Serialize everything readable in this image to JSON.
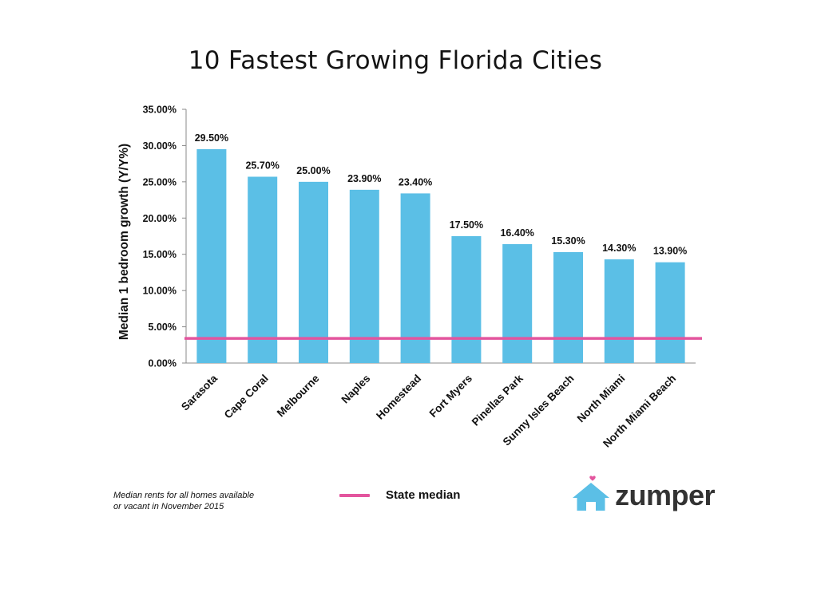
{
  "chart_data": {
    "type": "bar",
    "title": "10 Fastest Growing Florida Cities",
    "xlabel": "",
    "ylabel": "Median 1 bedroom growth (Y/Y%)",
    "categories": [
      "Sarasota",
      "Cape Coral",
      "Melbourne",
      "Naples",
      "Homestead",
      "Fort Myers",
      "Pinellas Park",
      "Sunny Isles Beach",
      "North Miami",
      "North Miami Beach"
    ],
    "values": [
      29.5,
      25.7,
      25.0,
      23.9,
      23.4,
      17.5,
      16.4,
      15.3,
      14.3,
      13.9
    ],
    "data_labels": [
      "29.50%",
      "25.70%",
      "25.00%",
      "23.90%",
      "23.40%",
      "17.50%",
      "16.40%",
      "15.30%",
      "14.30%",
      "13.90%"
    ],
    "ylim": [
      0,
      35
    ],
    "y_ticks": [
      0,
      5,
      10,
      15,
      20,
      25,
      30,
      35
    ],
    "y_tick_labels": [
      "0.00%",
      "5.00%",
      "10.00%",
      "15.00%",
      "20.00%",
      "25.00%",
      "30.00%",
      "35.00%"
    ],
    "reference_line": {
      "name": "State median",
      "value": 3.4
    },
    "grid": false,
    "legend": {
      "position": "bottom-center",
      "entries": [
        "State median"
      ]
    },
    "colors": {
      "bar": "#5BBFE6",
      "reference_line": "#E3559E"
    }
  },
  "footnote": {
    "line1": "Median rents for all homes available",
    "line2": "or vacant in November 2015"
  },
  "brand": {
    "name": "zumper",
    "icon": "house-heart-icon",
    "colors": {
      "house": "#5BBFE6",
      "heart": "#E3559E",
      "text": "#333333"
    }
  }
}
